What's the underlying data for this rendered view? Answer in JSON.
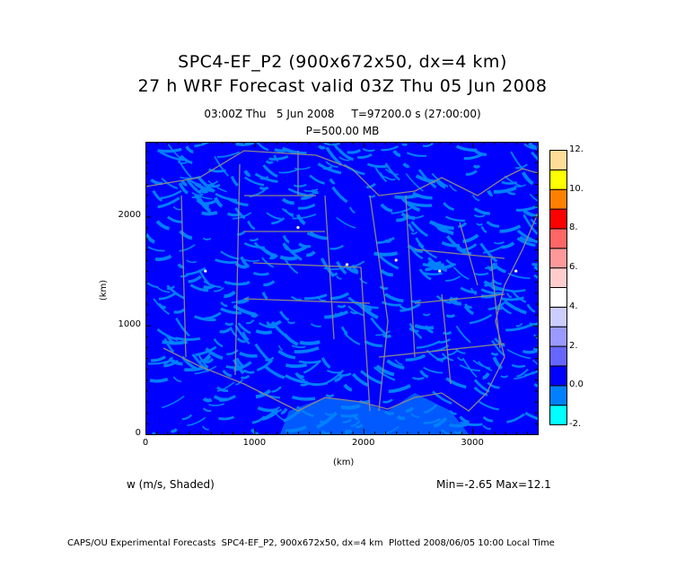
{
  "header": {
    "title_line1": "SPC4-EF_P2 (900x672x50, dx=4 km)",
    "title_line2": "27 h WRF Forecast valid 03Z Thu 05 Jun 2008",
    "valid_time": "03:00Z Thu   5 Jun 2008     T=97200.0 s (27:00:00)",
    "level": "P=500.00 MB"
  },
  "chart_data": {
    "type": "heatmap",
    "title": "SPC4-EF_P2 (900x672x50, dx=4 km) — 27 h WRF Forecast valid 03Z Thu 05 Jun 2008",
    "variable": "w (m/s, Shaded)",
    "xlabel": "(km)",
    "ylabel": "(km)",
    "xlim": [
      0,
      3600
    ],
    "ylim": [
      0,
      2688
    ],
    "xticks": [
      "0",
      "1000",
      "2000",
      "3000"
    ],
    "yticks": [
      "0",
      "1000",
      "2000"
    ],
    "colorbar": {
      "labels": [
        "12.",
        "10.",
        "8.",
        "6.",
        "4.",
        "2.",
        "0.0",
        "-2."
      ],
      "levels": [
        -2,
        -1,
        0,
        1,
        2,
        3,
        4,
        5,
        6,
        7,
        8,
        9,
        10,
        11,
        12
      ],
      "colors": [
        "#00ffff",
        "#0080ff",
        "#0000ff",
        "#6666ff",
        "#9999ff",
        "#ccccff",
        "#ffffff",
        "#ffcccc",
        "#ff9999",
        "#ff6666",
        "#ff0000",
        "#ff8000",
        "#ffff00",
        "#ffdd99"
      ]
    },
    "min_label": "Min=-2.65 Max=12.1",
    "min": -2.65,
    "max": 12.1
  },
  "footer": "CAPS/OU Experimental Forecasts  SPC4-EF_P2, 900x672x50, dx=4 km  Plotted 2008/06/05 10:00 Local Time"
}
